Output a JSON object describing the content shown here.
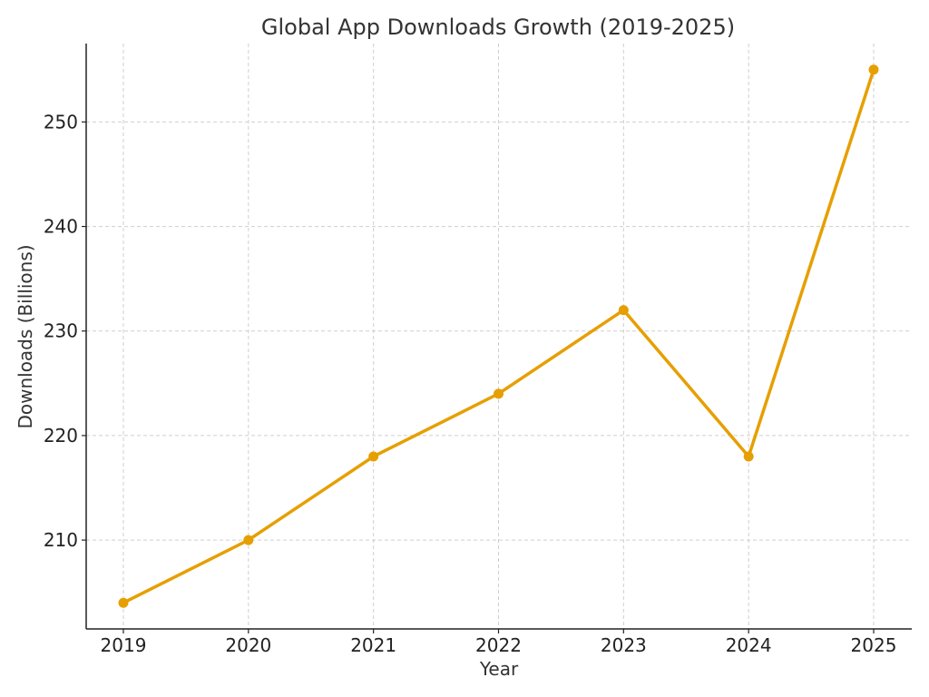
{
  "chart_data": {
    "type": "line",
    "title": "Global App Downloads Growth (2019-2025)",
    "xlabel": "Year",
    "ylabel": "Downloads (Billions)",
    "categories": [
      "2019",
      "2020",
      "2021",
      "2022",
      "2023",
      "2024",
      "2025"
    ],
    "series": [
      {
        "values": [
          204,
          210,
          218,
          224,
          232,
          218,
          255
        ],
        "color": "#E69F00"
      }
    ],
    "yticks": [
      210,
      220,
      230,
      240,
      250
    ],
    "ylim": [
      201.5,
      257.5
    ],
    "grid": true,
    "legend": "none"
  }
}
